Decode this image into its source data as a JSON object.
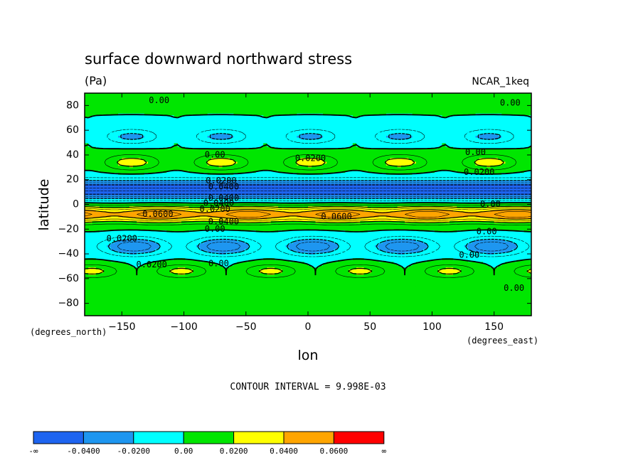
{
  "chart_data": {
    "type": "heatmap",
    "title": "surface downward northward stress",
    "units": "(Pa)",
    "model": "NCAR_1keq",
    "xlabel": "lon",
    "ylabel": "latitude",
    "x_unit_label": "(degrees_east)",
    "y_unit_label": "(degrees_north)",
    "xlim": [
      -180,
      180
    ],
    "ylim": [
      -90,
      90
    ],
    "x_ticks": [
      -150,
      -100,
      -50,
      0,
      50,
      100,
      150
    ],
    "y_ticks": [
      -80,
      -60,
      -40,
      -20,
      0,
      20,
      40,
      60,
      80
    ],
    "contour_interval_text": "CONTOUR INTERVAL = 9.998E-03",
    "colorbar": {
      "labels": [
        "-∞",
        "-0.0400",
        "-0.0200",
        "0.00",
        "0.0200",
        "0.0400",
        "0.0600",
        "∞"
      ],
      "colors": [
        "#1e64f0",
        "#1e96f0",
        "#00ffff",
        "#00e600",
        "#ffff00",
        "#ffa500",
        "#ff0000"
      ]
    },
    "contour_labels": [
      {
        "text": "0.00",
        "lon": -120,
        "lat": 84
      },
      {
        "text": "0.00",
        "lon": 163,
        "lat": 82
      },
      {
        "text": "0.00",
        "lon": -75,
        "lat": 40
      },
      {
        "text": "0.0200",
        "lon": 2,
        "lat": 37
      },
      {
        "text": "0.00",
        "lon": 135,
        "lat": 42
      },
      {
        "text": "0.0200",
        "lon": 138,
        "lat": 26
      },
      {
        "text": "0.0200",
        "lon": -70,
        "lat": 19
      },
      {
        "text": "0.0400",
        "lon": -68,
        "lat": 14
      },
      {
        "text": "0.0400",
        "lon": -68,
        "lat": 5
      },
      {
        "text": "0.0400",
        "lon": -72,
        "lat": 1
      },
      {
        "text": "0.00",
        "lon": 147,
        "lat": 0
      },
      {
        "text": "0.0200",
        "lon": -75,
        "lat": -4
      },
      {
        "text": "0.0600",
        "lon": -121,
        "lat": -8
      },
      {
        "text": "0.0600",
        "lon": 23,
        "lat": -10
      },
      {
        "text": "0.0400",
        "lon": -68,
        "lat": -14
      },
      {
        "text": "0.00",
        "lon": -75,
        "lat": -20
      },
      {
        "text": "0.00",
        "lon": 144,
        "lat": -22
      },
      {
        "text": "0.0200",
        "lon": -150,
        "lat": -28
      },
      {
        "text": "0.00",
        "lon": 130,
        "lat": -41
      },
      {
        "text": "0.0200",
        "lon": -126,
        "lat": -49
      },
      {
        "text": "0.00",
        "lon": -72,
        "lat": -48
      },
      {
        "text": "0.00",
        "lon": 166,
        "lat": -68
      }
    ]
  }
}
